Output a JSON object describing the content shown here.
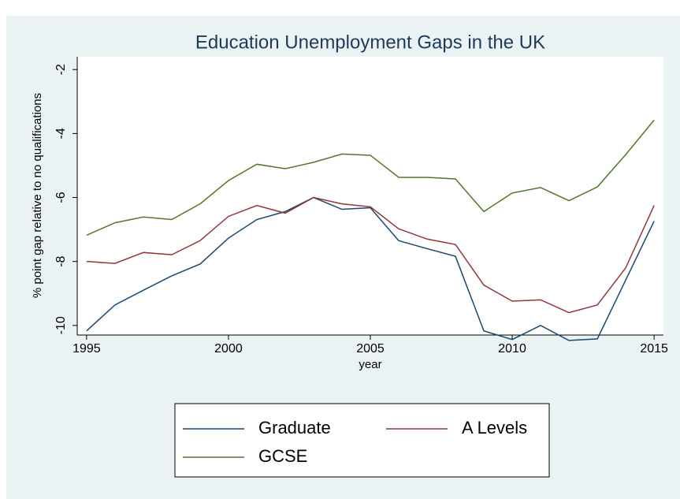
{
  "chart_data": {
    "type": "line",
    "title": "Education Unemployment Gaps in the UK",
    "x_label": "year",
    "y_label": "% point gap relative to no qualifications",
    "x": [
      1995,
      1996,
      1997,
      1998,
      1999,
      2000,
      2001,
      2002,
      2003,
      2004,
      2005,
      2006,
      2007,
      2008,
      2009,
      2010,
      2011,
      2012,
      2013,
      2014,
      2015
    ],
    "series": [
      {
        "name": "Graduate",
        "color": "#1a476f",
        "values": [
          -10.17,
          -9.36,
          -8.9,
          -8.45,
          -8.08,
          -7.27,
          -6.69,
          -6.44,
          -6.0,
          -6.37,
          -6.32,
          -7.35,
          -7.6,
          -7.84,
          -10.17,
          -10.44,
          -10.0,
          -10.47,
          -10.42,
          -8.58,
          -6.74
        ]
      },
      {
        "name": "A Levels",
        "color": "#90353b",
        "values": [
          -8.0,
          -8.06,
          -7.72,
          -7.79,
          -7.35,
          -6.59,
          -6.25,
          -6.49,
          -6.0,
          -6.2,
          -6.29,
          -6.98,
          -7.3,
          -7.47,
          -8.74,
          -9.24,
          -9.2,
          -9.6,
          -9.36,
          -8.2,
          -6.25
        ]
      },
      {
        "name": "GCSE",
        "color": "#55752f",
        "values": [
          -7.18,
          -6.79,
          -6.61,
          -6.69,
          -6.2,
          -5.47,
          -4.96,
          -5.1,
          -4.9,
          -4.64,
          -4.68,
          -5.37,
          -5.37,
          -5.42,
          -6.44,
          -5.86,
          -5.69,
          -6.1,
          -5.67,
          -4.66,
          -3.58
        ]
      }
    ],
    "xlim": [
      1994.67,
      2015.33
    ],
    "xticks": [
      1995,
      2000,
      2005,
      2010,
      2015
    ],
    "ylim": [
      -10.3,
      -1.6
    ],
    "yticks": [
      -10,
      -8,
      -6,
      -4,
      -2
    ],
    "grid": false
  }
}
